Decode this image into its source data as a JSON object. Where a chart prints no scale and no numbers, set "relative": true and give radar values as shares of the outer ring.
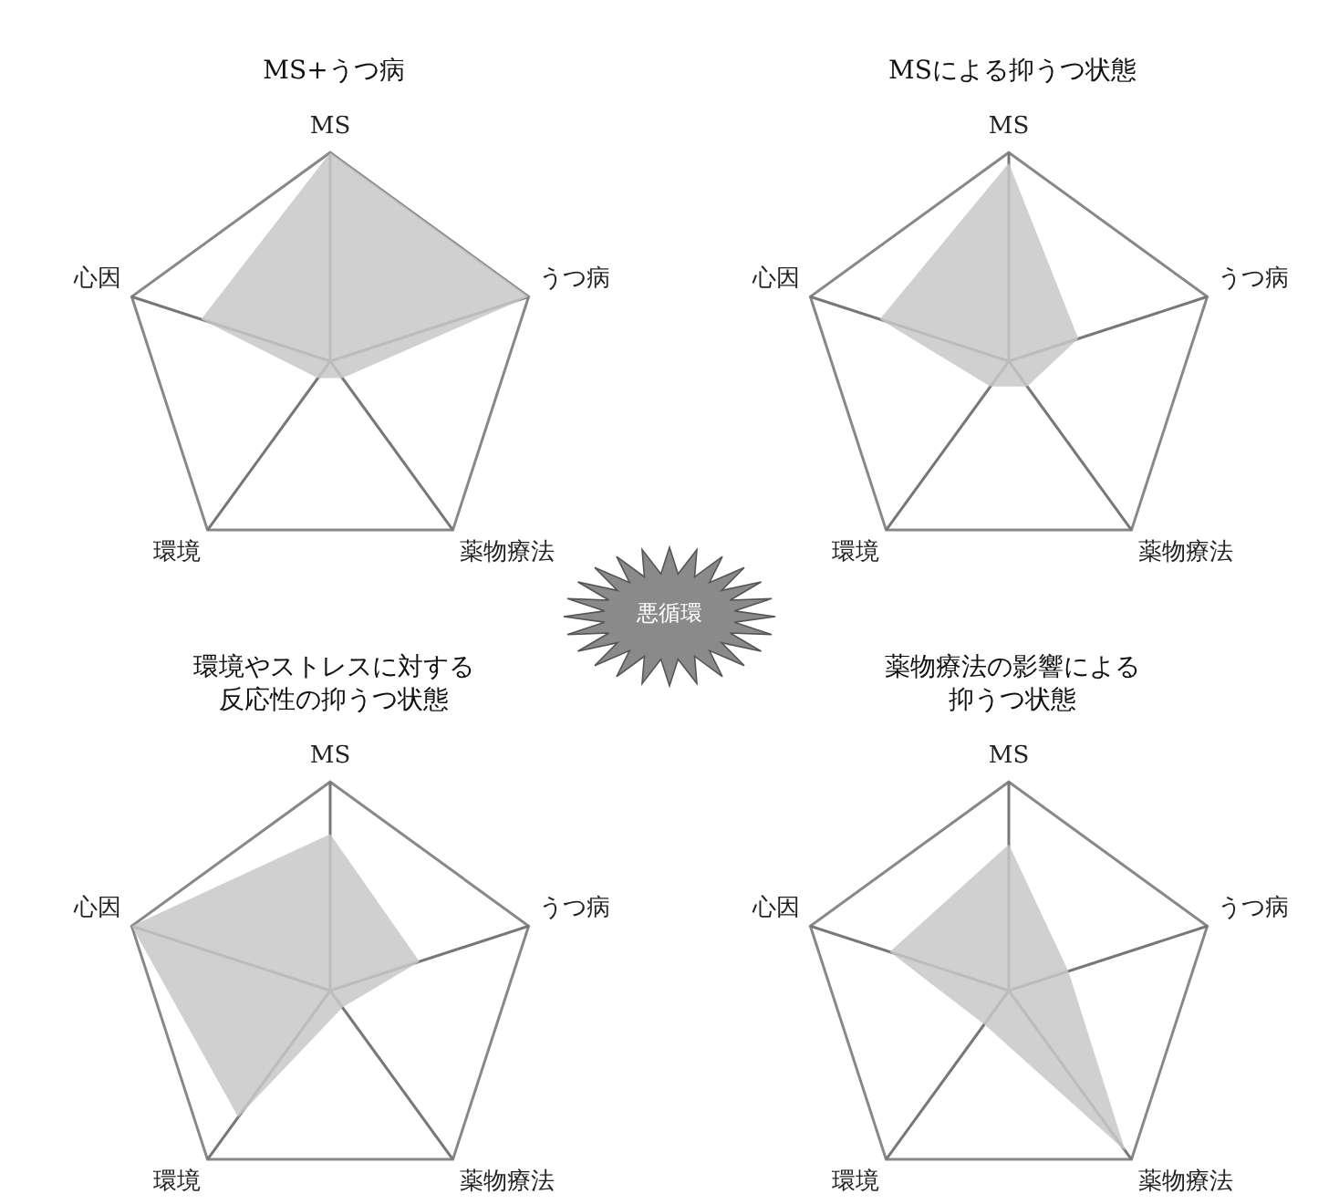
{
  "chart_data": [
    {
      "type": "radar",
      "title": "MS+うつ病",
      "categories": [
        "MS",
        "うつ病",
        "薬物療法",
        "環境",
        "心因"
      ],
      "relative": true,
      "legend": false,
      "grid": true,
      "series": [
        {
          "color": "#c8c8c8",
          "values": [
            1.0,
            1.0,
            0.1,
            0.1,
            0.65
          ]
        }
      ]
    },
    {
      "type": "radar",
      "title": "MSによる抑うつ状態",
      "categories": [
        "MS",
        "うつ病",
        "薬物療法",
        "環境",
        "心因"
      ],
      "relative": true,
      "legend": false,
      "grid": true,
      "series": [
        {
          "color": "#c8c8c8",
          "values": [
            0.95,
            0.35,
            0.15,
            0.15,
            0.65
          ]
        }
      ]
    },
    {
      "type": "other",
      "annotations": [
        "悪循環"
      ]
    },
    {
      "type": "radar",
      "title": "環境やストレスに対する反応性の抑うつ状態",
      "categories": [
        "MS",
        "うつ病",
        "薬物療法",
        "環境",
        "心因"
      ],
      "relative": true,
      "legend": false,
      "grid": true,
      "series": [
        {
          "color": "#c8c8c8",
          "values": [
            0.75,
            0.45,
            0.1,
            0.75,
            1.0
          ]
        }
      ]
    },
    {
      "type": "radar",
      "title": "薬物療法の影響による抑うつ状態",
      "categories": [
        "MS",
        "うつ病",
        "薬物療法",
        "環境",
        "心因"
      ],
      "relative": true,
      "legend": false,
      "grid": true,
      "series": [
        {
          "color": "#c8c8c8",
          "values": [
            0.7,
            0.3,
            0.95,
            0.2,
            0.6
          ]
        }
      ]
    }
  ]
}
